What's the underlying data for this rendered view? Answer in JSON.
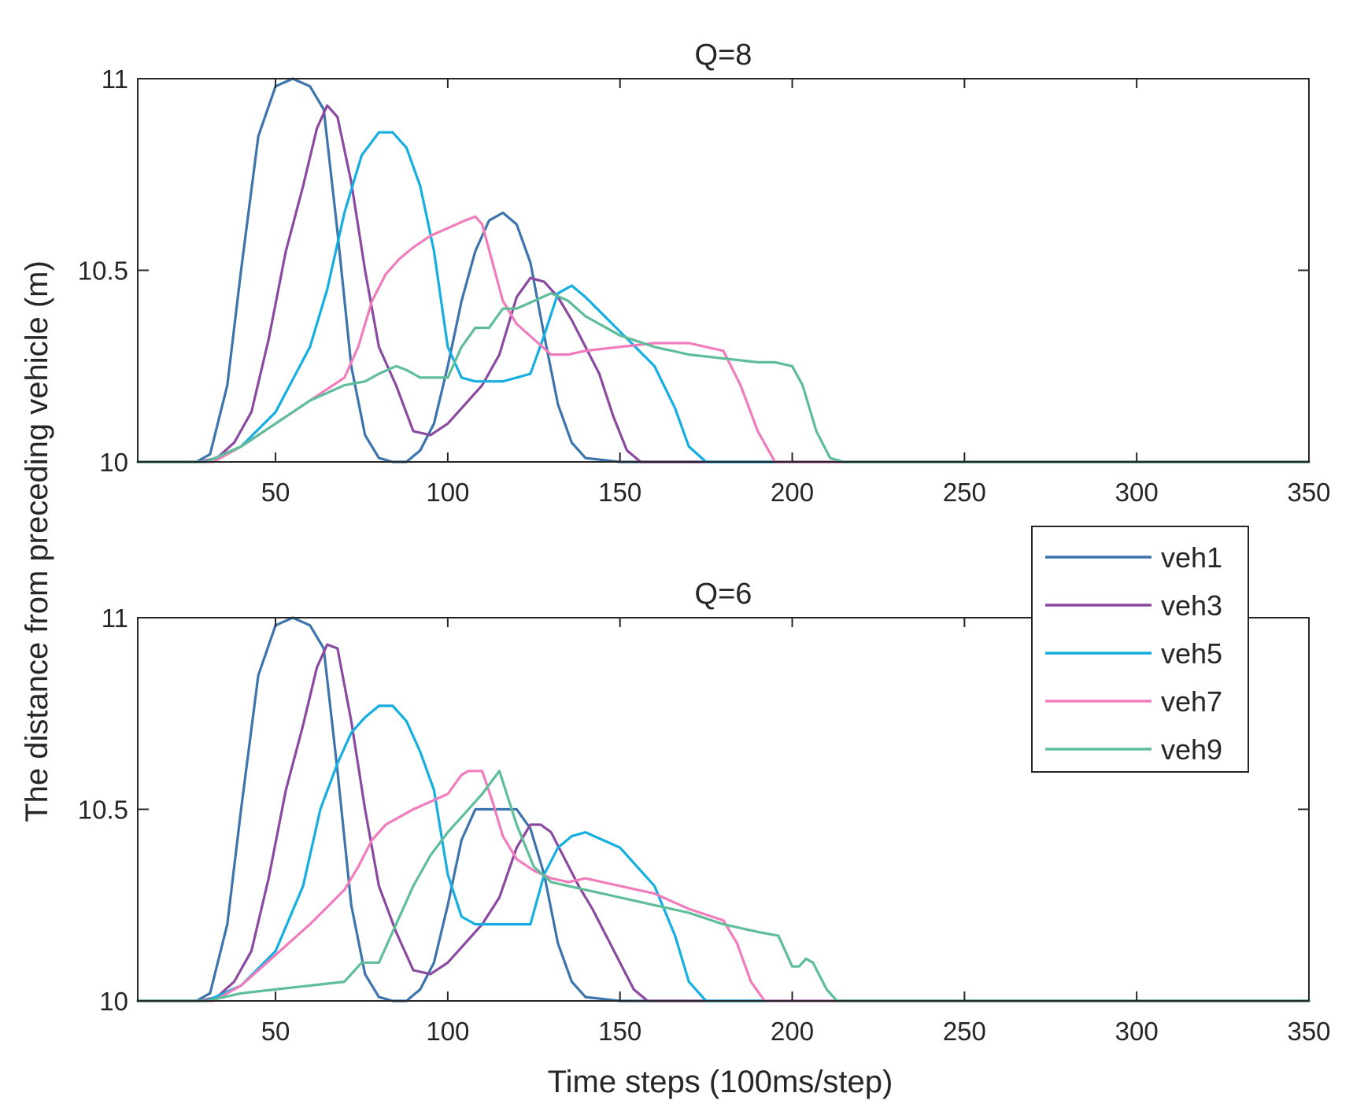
{
  "chart_data": {
    "type": "line",
    "shared": {
      "ylabel": "The distance from preceding vehicle (m)",
      "xlabel": "Time steps (100ms/step)",
      "xlim": [
        10,
        350
      ],
      "ylim": [
        10,
        11
      ],
      "xticks": [
        50,
        100,
        150,
        200,
        250,
        300,
        350
      ],
      "yticks": [
        10,
        10.5,
        11
      ],
      "legend_position": "right, between the two panels"
    },
    "legend": [
      {
        "name": "veh1",
        "color": "#3d74ac"
      },
      {
        "name": "veh3",
        "color": "#8a4a9f"
      },
      {
        "name": "veh5",
        "color": "#16aee0"
      },
      {
        "name": "veh7",
        "color": "#f07dbb"
      },
      {
        "name": "veh9",
        "color": "#5fbd9b"
      }
    ],
    "panels": [
      {
        "title": "Q=8",
        "series": [
          {
            "name": "veh1",
            "color": "#3d74ac",
            "x": [
              10,
              27,
              31,
              36,
              40,
              45,
              50,
              55,
              60,
              64,
              68,
              72,
              76,
              80,
              84,
              88,
              92,
              96,
              100,
              104,
              108,
              112,
              116,
              120,
              124,
              128,
              132,
              136,
              140,
              150,
              350
            ],
            "y": [
              10,
              10,
              10.02,
              10.2,
              10.5,
              10.85,
              10.98,
              11.0,
              10.98,
              10.92,
              10.6,
              10.25,
              10.07,
              10.01,
              10.0,
              10.0,
              10.03,
              10.1,
              10.25,
              10.42,
              10.55,
              10.63,
              10.65,
              10.62,
              10.52,
              10.33,
              10.15,
              10.05,
              10.01,
              10,
              10
            ]
          },
          {
            "name": "veh3",
            "color": "#8a4a9f",
            "x": [
              10,
              28,
              33,
              38,
              43,
              48,
              53,
              58,
              62,
              65,
              68,
              72,
              76,
              80,
              85,
              90,
              95,
              100,
              105,
              110,
              115,
              120,
              124,
              128,
              132,
              136,
              140,
              144,
              148,
              152,
              156,
              350
            ],
            "y": [
              10,
              10,
              10.01,
              10.05,
              10.13,
              10.32,
              10.55,
              10.72,
              10.87,
              10.93,
              10.9,
              10.73,
              10.5,
              10.3,
              10.2,
              10.08,
              10.07,
              10.1,
              10.15,
              10.2,
              10.28,
              10.43,
              10.48,
              10.47,
              10.43,
              10.37,
              10.3,
              10.23,
              10.12,
              10.03,
              10,
              10
            ]
          },
          {
            "name": "veh5",
            "color": "#16aee0",
            "x": [
              10,
              30,
              40,
              50,
              60,
              65,
              70,
              75,
              80,
              84,
              88,
              92,
              96,
              100,
              104,
              108,
              112,
              116,
              120,
              124,
              128,
              132,
              136,
              140,
              150,
              160,
              166,
              170,
              175,
              180,
              350
            ],
            "y": [
              10,
              10,
              10.04,
              10.13,
              10.3,
              10.45,
              10.65,
              10.8,
              10.86,
              10.86,
              10.82,
              10.72,
              10.55,
              10.3,
              10.22,
              10.21,
              10.21,
              10.21,
              10.22,
              10.23,
              10.33,
              10.44,
              10.46,
              10.43,
              10.34,
              10.25,
              10.14,
              10.04,
              10,
              10,
              10
            ]
          },
          {
            "name": "veh7",
            "color": "#f07dbb",
            "x": [
              10,
              32,
              40,
              50,
              60,
              70,
              74,
              78,
              82,
              86,
              90,
              95,
              100,
              105,
              108,
              110,
              113,
              116,
              120,
              125,
              130,
              135,
              140,
              150,
              160,
              170,
              180,
              185,
              190,
              195,
              350
            ],
            "y": [
              10,
              10,
              10.04,
              10.1,
              10.16,
              10.22,
              10.3,
              10.42,
              10.49,
              10.53,
              10.56,
              10.59,
              10.61,
              10.63,
              10.64,
              10.62,
              10.52,
              10.42,
              10.36,
              10.32,
              10.28,
              10.28,
              10.29,
              10.3,
              10.31,
              10.31,
              10.29,
              10.2,
              10.08,
              10.0,
              10
            ]
          },
          {
            "name": "veh9",
            "color": "#5fbd9b",
            "x": [
              10,
              30,
              40,
              50,
              60,
              70,
              76,
              80,
              85,
              88,
              92,
              96,
              100,
              104,
              108,
              112,
              116,
              120,
              125,
              130,
              135,
              140,
              150,
              160,
              170,
              180,
              190,
              195,
              200,
              203,
              207,
              211,
              215,
              350
            ],
            "y": [
              10,
              10,
              10.04,
              10.1,
              10.16,
              10.2,
              10.21,
              10.23,
              10.25,
              10.24,
              10.22,
              10.22,
              10.22,
              10.3,
              10.35,
              10.35,
              10.4,
              10.4,
              10.42,
              10.44,
              10.42,
              10.38,
              10.33,
              10.3,
              10.28,
              10.27,
              10.26,
              10.26,
              10.25,
              10.2,
              10.08,
              10.01,
              10,
              10
            ]
          }
        ]
      },
      {
        "title": "Q=6",
        "series": [
          {
            "name": "veh1",
            "color": "#3d74ac",
            "x": [
              10,
              27,
              31,
              36,
              40,
              45,
              50,
              55,
              60,
              64,
              68,
              72,
              76,
              80,
              84,
              88,
              92,
              96,
              100,
              104,
              108,
              112,
              116,
              120,
              124,
              128,
              132,
              136,
              140,
              150,
              350
            ],
            "y": [
              10,
              10,
              10.02,
              10.2,
              10.5,
              10.85,
              10.98,
              11.0,
              10.98,
              10.92,
              10.6,
              10.25,
              10.07,
              10.01,
              10.0,
              10.0,
              10.03,
              10.1,
              10.25,
              10.42,
              10.5,
              10.5,
              10.5,
              10.5,
              10.45,
              10.33,
              10.15,
              10.05,
              10.01,
              10,
              10
            ]
          },
          {
            "name": "veh3",
            "color": "#8a4a9f",
            "x": [
              10,
              28,
              33,
              38,
              43,
              48,
              53,
              58,
              62,
              65,
              68,
              72,
              76,
              80,
              85,
              90,
              95,
              100,
              105,
              110,
              115,
              120,
              124,
              127,
              130,
              134,
              138,
              142,
              146,
              150,
              154,
              158,
              350
            ],
            "y": [
              10,
              10,
              10.01,
              10.05,
              10.13,
              10.32,
              10.55,
              10.72,
              10.87,
              10.93,
              10.92,
              10.73,
              10.5,
              10.3,
              10.18,
              10.08,
              10.07,
              10.1,
              10.15,
              10.2,
              10.27,
              10.4,
              10.46,
              10.46,
              10.44,
              10.37,
              10.3,
              10.24,
              10.17,
              10.1,
              10.03,
              10,
              10
            ]
          },
          {
            "name": "veh5",
            "color": "#16aee0",
            "x": [
              10,
              30,
              40,
              50,
              58,
              63,
              68,
              72,
              76,
              80,
              84,
              88,
              92,
              96,
              100,
              104,
              108,
              112,
              116,
              120,
              124,
              128,
              132,
              136,
              140,
              150,
              160,
              166,
              170,
              175,
              180,
              350
            ],
            "y": [
              10,
              10,
              10.04,
              10.13,
              10.3,
              10.5,
              10.62,
              10.7,
              10.74,
              10.77,
              10.77,
              10.73,
              10.65,
              10.55,
              10.33,
              10.22,
              10.2,
              10.2,
              10.2,
              10.2,
              10.2,
              10.33,
              10.4,
              10.43,
              10.44,
              10.4,
              10.3,
              10.17,
              10.05,
              10,
              10,
              10
            ]
          },
          {
            "name": "veh7",
            "color": "#f07dbb",
            "x": [
              10,
              32,
              40,
              50,
              60,
              70,
              74,
              78,
              82,
              86,
              90,
              95,
              100,
              104,
              106,
              110,
              113,
              116,
              120,
              125,
              130,
              135,
              140,
              150,
              160,
              170,
              180,
              184,
              188,
              192,
              350
            ],
            "y": [
              10,
              10,
              10.04,
              10.12,
              10.2,
              10.29,
              10.35,
              10.42,
              10.46,
              10.48,
              10.5,
              10.52,
              10.54,
              10.59,
              10.6,
              10.6,
              10.52,
              10.43,
              10.37,
              10.34,
              10.32,
              10.31,
              10.32,
              10.3,
              10.28,
              10.24,
              10.21,
              10.15,
              10.05,
              10.0,
              10
            ]
          },
          {
            "name": "veh9",
            "color": "#5fbd9b",
            "x": [
              10,
              30,
              40,
              50,
              60,
              70,
              75,
              80,
              85,
              90,
              95,
              100,
              105,
              110,
              115,
              120,
              125,
              130,
              135,
              140,
              150,
              160,
              170,
              180,
              190,
              196,
              198,
              200,
              202,
              204,
              206,
              210,
              213,
              350
            ],
            "y": [
              10,
              10,
              10.02,
              10.03,
              10.04,
              10.05,
              10.1,
              10.1,
              10.2,
              10.3,
              10.38,
              10.44,
              10.49,
              10.54,
              10.6,
              10.46,
              10.35,
              10.31,
              10.3,
              10.29,
              10.27,
              10.25,
              10.23,
              10.2,
              10.18,
              10.17,
              10.13,
              10.09,
              10.09,
              10.11,
              10.1,
              10.03,
              10,
              10
            ]
          }
        ]
      }
    ]
  }
}
